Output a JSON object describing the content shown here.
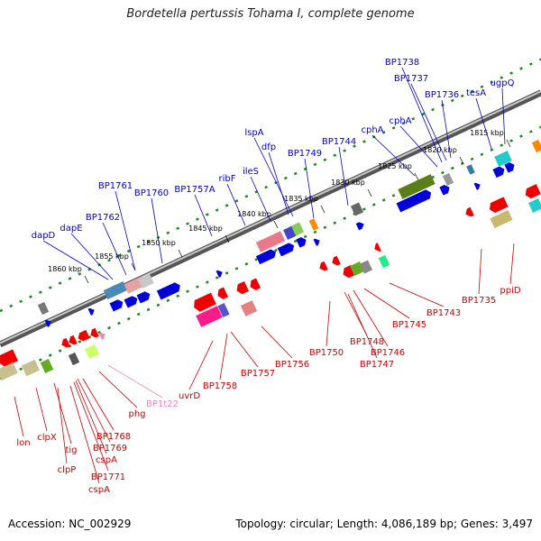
{
  "title": "Bordetella pertussis Tohama I, complete genome",
  "footer": {
    "accession": "Accession: NC_002929",
    "summary": "Topology: circular; Length: 4,086,189 bp; Genes: 3,497"
  },
  "scale_labels": [
    "1860 kbp",
    "1855 kbp",
    "1850 kbp",
    "1845 kbp",
    "1840 kbp",
    "1835 kbp",
    "1830 kbp",
    "1825 kbp",
    "1820 kbp",
    "1815 kbp"
  ],
  "top_genes": [
    "dapD",
    "dapE",
    "BP1762",
    "BP1761",
    "BP1760",
    "BP1757A",
    "ribF",
    "ileS",
    "lspA",
    "dfp",
    "BP1749",
    "BP1744",
    "cphA",
    "cphA",
    "BP1738",
    "BP1737",
    "BP1736",
    "tesA",
    "ugpQ"
  ],
  "bottom_genes": [
    "lon",
    "clpX",
    "tig",
    "clpP",
    "BP1768",
    "BP1769",
    "cspA",
    "BP1771",
    "cspA",
    "phg",
    "BP1t22",
    "uvrD",
    "BP1758",
    "BP1757",
    "BP1756",
    "BP1750",
    "BP1748",
    "BP1746",
    "BP1747",
    "BP1745",
    "BP1743",
    "BP1735",
    "ppiD"
  ],
  "colors": {
    "top_label": "#0000cc",
    "bottom_label": "#cc0000",
    "trna_label": "#ee88bb",
    "backbone": "#8a8a8a",
    "scale_tick": "#1a8a1a"
  }
}
